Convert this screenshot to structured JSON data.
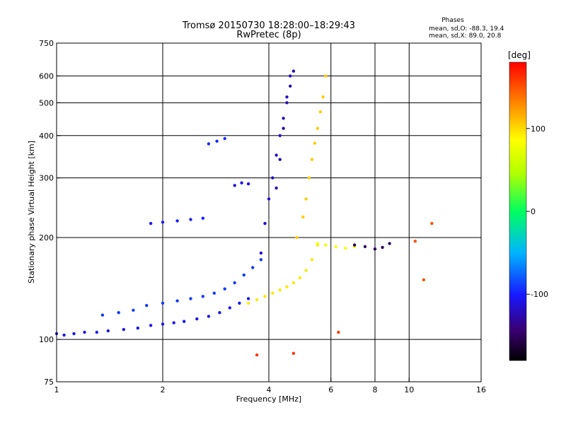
{
  "title": "Tromsø 20150730 18:28:00–18:29:43",
  "subtitle": "RwPretec (8p)",
  "phases": {
    "heading": "Phases",
    "line_o": "mean, sd,O: -88.3, 19.4",
    "line_x": "mean, sd,X: 89.0, 20.8"
  },
  "chart_data": {
    "type": "scatter",
    "xlabel": "Frequency [MHz]",
    "ylabel": "Stationary phase Virtual Height [km]",
    "xscale": "log",
    "yscale": "log",
    "xlim": [
      1,
      16
    ],
    "ylim": [
      75,
      750
    ],
    "x_ticks": [
      1,
      2,
      4,
      6,
      8,
      10,
      16
    ],
    "y_ticks": [
      75,
      100,
      200,
      300,
      400,
      500,
      600,
      750
    ],
    "grid": true,
    "colorbar": {
      "label": "[deg]",
      "range": [
        -180,
        180
      ],
      "ticks": [
        100,
        0,
        -100
      ]
    },
    "series": [
      {
        "x": [
          1.0,
          1.05,
          1.12,
          1.2,
          1.3,
          1.4,
          1.55,
          1.7,
          1.85,
          2.0,
          2.15,
          2.3,
          2.5,
          2.7,
          2.9,
          3.1,
          3.3,
          3.5
        ],
        "y": [
          104,
          103,
          104,
          105,
          105,
          106,
          107,
          108,
          110,
          111,
          112,
          113,
          115,
          117,
          120,
          124,
          128,
          132
        ],
        "phase": -105
      },
      {
        "x": [
          1.35,
          1.5,
          1.65,
          1.8,
          2.0,
          2.2,
          2.4,
          2.6,
          2.8,
          3.0,
          3.2,
          3.4,
          3.6,
          3.8
        ],
        "y": [
          118,
          120,
          122,
          126,
          128,
          130,
          132,
          134,
          137,
          141,
          147,
          155,
          163,
          172
        ],
        "phase": -90
      },
      {
        "x": [
          3.8,
          3.9,
          4.0,
          4.1,
          4.2,
          4.3,
          4.4,
          4.5,
          4.6
        ],
        "y": [
          180,
          220,
          260,
          300,
          350,
          400,
          450,
          520,
          600
        ],
        "phase": -115
      },
      {
        "x": [
          4.2,
          4.3,
          4.4,
          4.5,
          4.6,
          4.7
        ],
        "y": [
          280,
          340,
          420,
          500,
          560,
          620
        ],
        "phase": -125
      },
      {
        "x": [
          3.5,
          3.7,
          3.9,
          4.1,
          4.3,
          4.5,
          4.7,
          4.9,
          5.1,
          5.3,
          5.5
        ],
        "y": [
          128,
          131,
          134,
          137,
          140,
          143,
          147,
          152,
          160,
          172,
          190
        ],
        "phase": 95
      },
      {
        "x": [
          4.8,
          5.0,
          5.1,
          5.2,
          5.3,
          5.4,
          5.5,
          5.6,
          5.7,
          5.8
        ],
        "y": [
          200,
          230,
          260,
          300,
          340,
          380,
          420,
          470,
          520,
          600
        ],
        "phase": 105
      },
      {
        "x": [
          5.5,
          5.8,
          6.2,
          6.6,
          7.0
        ],
        "y": [
          192,
          190,
          188,
          186,
          188
        ],
        "phase": 80
      },
      {
        "x": [
          7.0,
          7.5,
          8.0,
          8.4,
          8.8
        ],
        "y": [
          190,
          188,
          185,
          187,
          192
        ],
        "phase": -150
      },
      {
        "x": [
          1.85,
          2.0,
          2.2,
          2.4,
          2.6
        ],
        "y": [
          220,
          222,
          224,
          226,
          228
        ],
        "phase": -100
      },
      {
        "x": [
          2.7,
          2.85,
          3.0
        ],
        "y": [
          378,
          385,
          392
        ],
        "phase": -95
      },
      {
        "x": [
          3.2,
          3.35,
          3.5
        ],
        "y": [
          285,
          290,
          288
        ],
        "phase": -110
      },
      {
        "x": [
          10.4,
          11.0,
          11.6
        ],
        "y": [
          195,
          150,
          220
        ],
        "phase": 150
      },
      {
        "x": [
          3.7,
          4.7,
          6.3
        ],
        "y": [
          90,
          91,
          105
        ],
        "phase": 160
      }
    ]
  }
}
